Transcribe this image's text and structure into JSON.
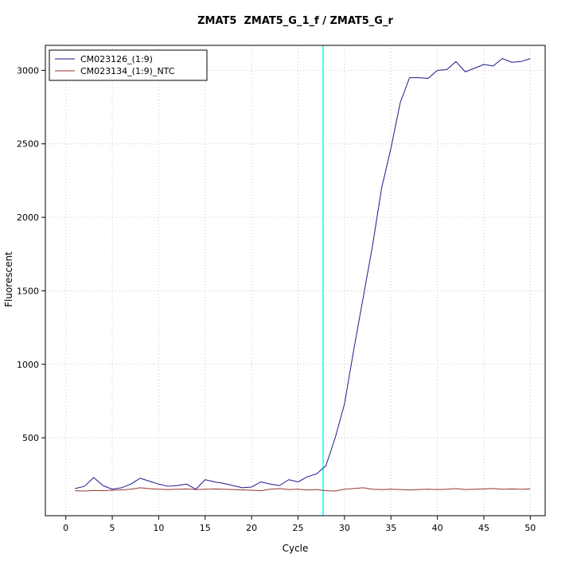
{
  "chart_data": {
    "type": "line",
    "title": "ZMAT5  ZMAT5_G_1_f / ZMAT5_G_r",
    "xlabel": "Cycle",
    "ylabel": "Fluorescent",
    "xlim": [
      -2.2,
      51.6
    ],
    "ylim": [
      -30,
      3170
    ],
    "x_ticks": [
      0,
      5,
      10,
      15,
      20,
      25,
      30,
      35,
      40,
      45,
      50
    ],
    "y_ticks": [
      500,
      1000,
      1500,
      2000,
      2500,
      3000
    ],
    "grid": true,
    "legend_position": "top-left",
    "threshold_line": {
      "x": 27.7,
      "color": "#00ffff"
    },
    "x": [
      1,
      2,
      3,
      4,
      5,
      6,
      7,
      8,
      9,
      10,
      11,
      12,
      13,
      14,
      15,
      16,
      17,
      18,
      19,
      20,
      21,
      22,
      23,
      24,
      25,
      26,
      27,
      28,
      29,
      30,
      31,
      32,
      33,
      34,
      35,
      36,
      37,
      38,
      39,
      40,
      41,
      42,
      43,
      44,
      45,
      46,
      47,
      48,
      49,
      50
    ],
    "series": [
      {
        "name": "CM023126_(1:9)",
        "color": "#1a1a8c",
        "values": [
          155,
          170,
          230,
          175,
          150,
          160,
          185,
          225,
          205,
          185,
          170,
          175,
          185,
          150,
          215,
          200,
          190,
          175,
          160,
          165,
          200,
          185,
          175,
          215,
          200,
          235,
          255,
          310,
          500,
          730,
          1100,
          1450,
          1800,
          2200,
          2470,
          2780,
          2950,
          2950,
          2945,
          3000,
          3005,
          3060,
          2990,
          3015,
          3040,
          3030,
          3080,
          3055,
          3060,
          3080
        ]
      },
      {
        "name": "CM023134_(1:9)_NTC",
        "color": "#993333",
        "values": [
          140,
          138,
          142,
          140,
          143,
          146,
          150,
          160,
          154,
          150,
          148,
          150,
          152,
          148,
          150,
          152,
          150,
          148,
          145,
          143,
          140,
          150,
          155,
          148,
          150,
          145,
          148,
          140,
          138,
          150,
          155,
          160,
          150,
          148,
          150,
          148,
          145,
          148,
          150,
          148,
          150,
          155,
          148,
          150,
          152,
          155,
          150,
          152,
          150,
          152
        ]
      }
    ]
  }
}
